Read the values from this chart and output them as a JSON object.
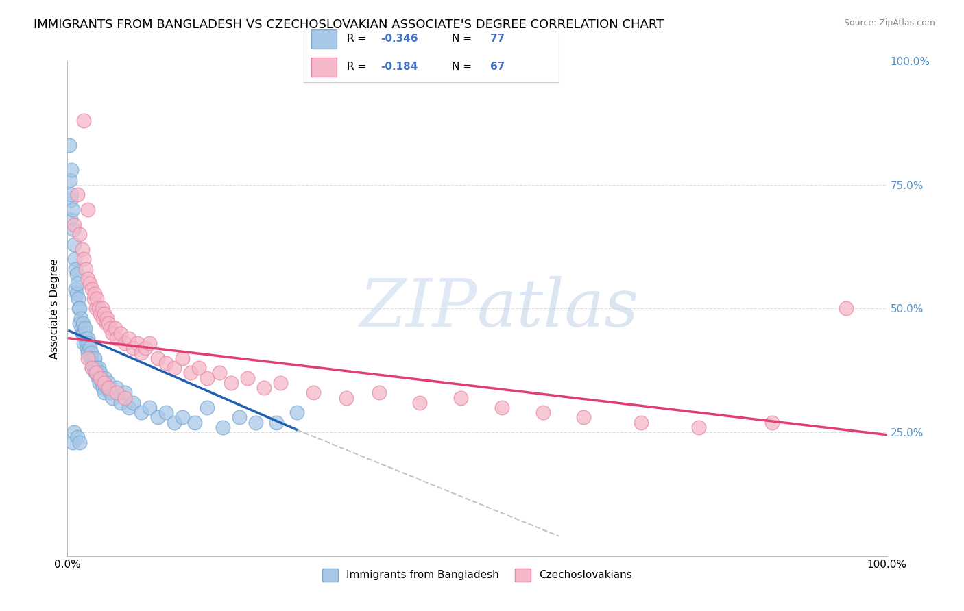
{
  "title": "IMMIGRANTS FROM BANGLADESH VS CZECHOSLOVAKIAN ASSOCIATE'S DEGREE CORRELATION CHART",
  "source": "Source: ZipAtlas.com",
  "ylabel": "Associate's Degree",
  "right_yticks": [
    0.0,
    0.25,
    0.5,
    0.75,
    1.0
  ],
  "right_yticklabels": [
    "",
    "25.0%",
    "50.0%",
    "75.0%",
    "100.0%"
  ],
  "legend_label_blue": "Immigrants from Bangladesh",
  "legend_label_pink": "Czechoslovakians",
  "blue_color": "#a8c8e8",
  "pink_color": "#f4b8c8",
  "blue_edge": "#7aaad0",
  "pink_edge": "#e888a8",
  "trend_blue_color": "#2060b0",
  "trend_pink_color": "#e04070",
  "dashed_color": "#aaaaaa",
  "watermark_color": "#d0e0f0",
  "xlim": [
    0.0,
    1.0
  ],
  "ylim": [
    0.0,
    1.0
  ],
  "grid_color": "#dddddd",
  "background_color": "#ffffff",
  "title_fontsize": 13,
  "axis_label_fontsize": 11,
  "tick_fontsize": 11,
  "blue_r": "-0.346",
  "blue_n": "77",
  "pink_r": "-0.184",
  "pink_n": "67",
  "trend_blue_x0": 0.002,
  "trend_blue_x1": 0.28,
  "trend_blue_y0": 0.455,
  "trend_blue_y1": 0.255,
  "trend_blue_dash_x0": 0.28,
  "trend_blue_dash_x1": 0.6,
  "trend_blue_dash_y0": 0.255,
  "trend_blue_dash_y1": 0.04,
  "trend_pink_x0": 0.002,
  "trend_pink_x1": 1.0,
  "trend_pink_y0": 0.44,
  "trend_pink_y1": 0.245
}
